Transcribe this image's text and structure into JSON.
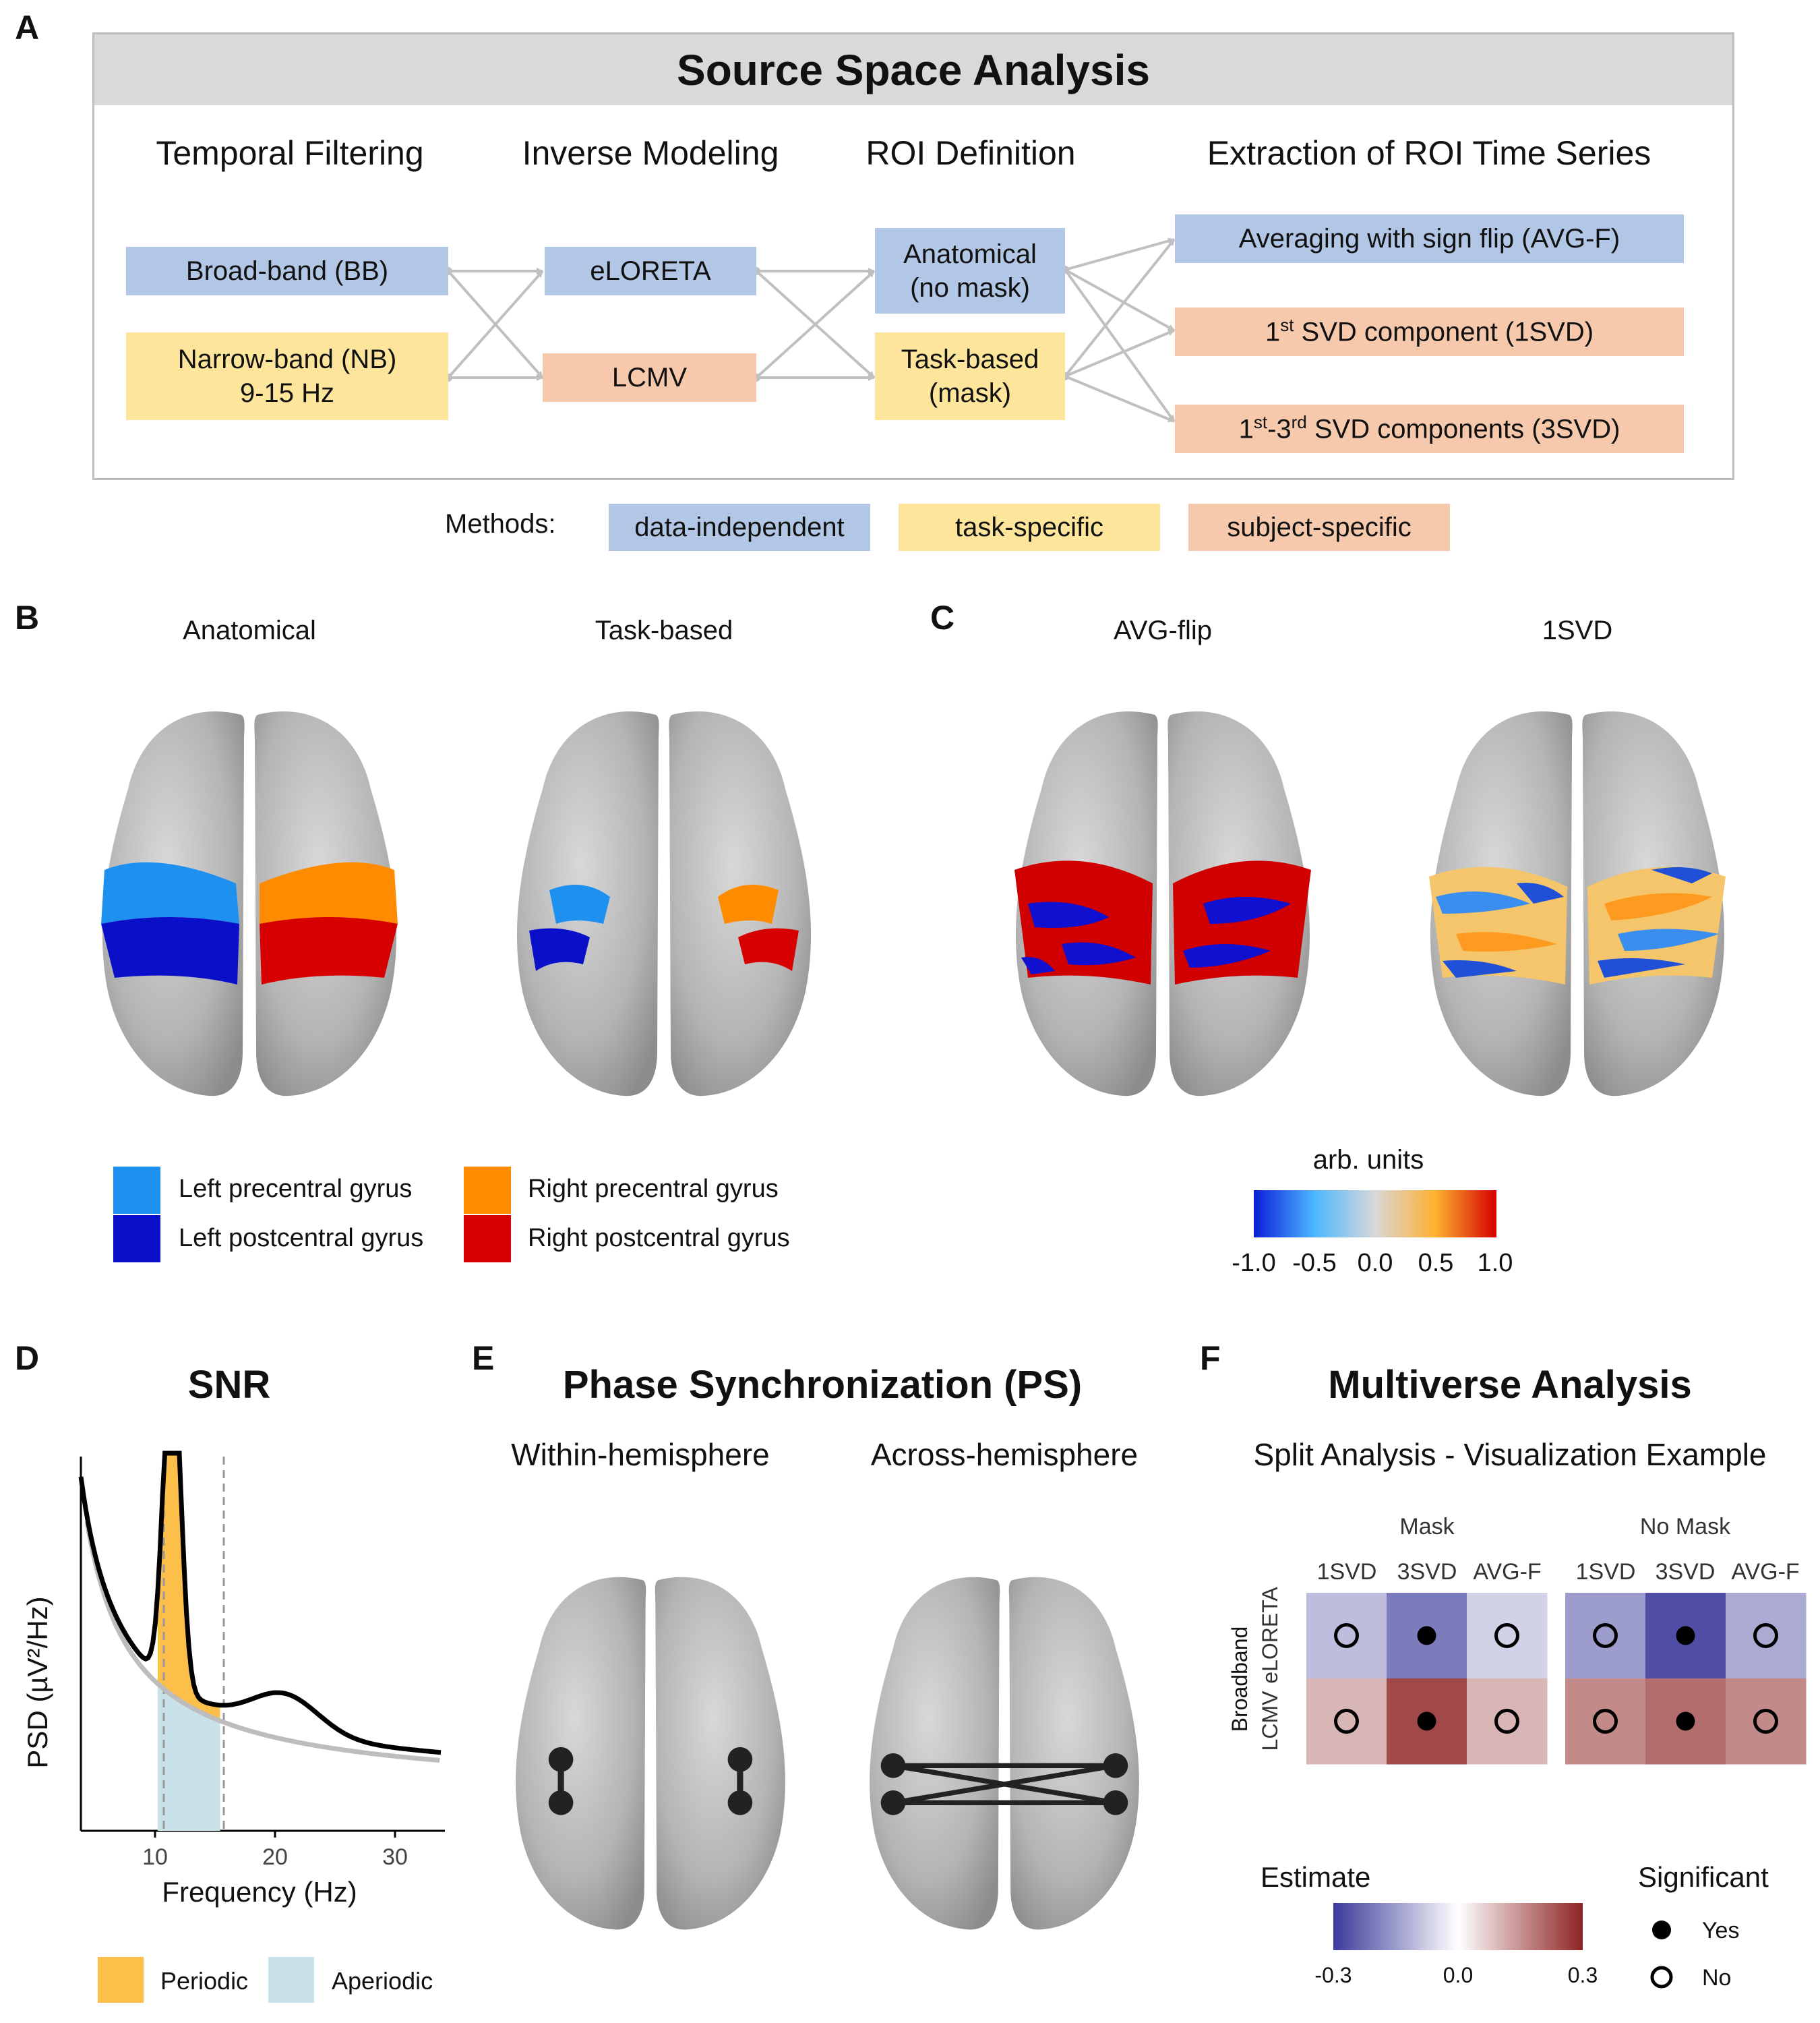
{
  "panels": {
    "a": "A",
    "b": "B",
    "c": "C",
    "d": "D",
    "e": "E",
    "f": "F"
  },
  "panel_a": {
    "title": "Source Space Analysis",
    "columns": [
      "Temporal Filtering",
      "Inverse Modeling",
      "ROI Definition",
      "Extraction of ROI Time Series"
    ],
    "filtering": {
      "bb": "Broad-band (BB)",
      "nb_line1": "Narrow-band (NB)",
      "nb_line2": "9-15 Hz"
    },
    "inverse": {
      "eloreta": "eLORETA",
      "lcmv": "LCMV"
    },
    "roi": {
      "anat_line1": "Anatomical",
      "anat_line2": "(no mask)",
      "task_line1": "Task-based",
      "task_line2": "(mask)"
    },
    "extraction": {
      "avg": "Averaging with sign flip (AVG-F)",
      "svd1_sup": "st",
      "svd1_rest": " SVD component (1SVD)",
      "svd3_pre": "1",
      "svd3_sup1": "st",
      "svd3_mid": "-3",
      "svd3_sup2": "rd",
      "svd3_rest": " SVD components (3SVD)",
      "one": "1"
    },
    "methods_label": "Methods:",
    "methods": [
      "data-independent",
      "task-specific",
      "subject-specific"
    ],
    "colors": {
      "blue": "#b2c6e6",
      "yellow": "#fde69c",
      "salmon": "#f6c9ad"
    }
  },
  "panel_b": {
    "titles": [
      "Anatomical",
      "Task-based"
    ],
    "legend": [
      {
        "label": "Left precentral gyrus",
        "color": "#1e90f0"
      },
      {
        "label": "Left postcentral gyrus",
        "color": "#0a10c8"
      },
      {
        "label": "Right precentral gyrus",
        "color": "#ff8c00"
      },
      {
        "label": "Right postcentral gyrus",
        "color": "#d60000"
      }
    ]
  },
  "panel_c": {
    "titles": [
      "AVG-flip",
      "1SVD"
    ],
    "colorbar_title": "arb. units",
    "ticks": [
      "-1.0",
      "-0.5",
      "0.0",
      "0.5",
      "1.0"
    ]
  },
  "panel_d": {
    "title": "SNR",
    "ylabel": "PSD (µV²/Hz)",
    "xlabel": "Frequency (Hz)",
    "xticks": [
      "10",
      "20",
      "30"
    ],
    "legend": [
      {
        "label": "Periodic",
        "color": "#fbbf4a"
      },
      {
        "label": "Aperiodic",
        "color": "#c9e2ea"
      }
    ]
  },
  "panel_e": {
    "title": "Phase Synchronization (PS)",
    "subtitles": [
      "Within-hemisphere",
      "Across-hemisphere"
    ]
  },
  "panel_f": {
    "title": "Multiverse Analysis",
    "subtitle": "Split Analysis - Visualization Example",
    "groups": [
      "Mask",
      "No Mask"
    ],
    "cols": [
      "1SVD",
      "3SVD",
      "AVG-F"
    ],
    "rows": [
      "eLORETA",
      "LCMV"
    ],
    "side_label": "Broadband",
    "estimate_title": "Estimate",
    "estimate_ticks": [
      "-0.3",
      "0.0",
      "0.3"
    ],
    "significant_title": "Significant",
    "sig_labels": [
      "Yes",
      "No"
    ],
    "heatmap": {
      "mask": {
        "values": [
          [
            -0.1,
            -0.2,
            -0.07
          ],
          [
            0.1,
            0.25,
            0.1
          ]
        ],
        "significant": [
          [
            false,
            true,
            false
          ],
          [
            false,
            true,
            false
          ]
        ]
      },
      "nomask": {
        "values": [
          [
            -0.15,
            -0.27,
            -0.13
          ],
          [
            0.16,
            0.2,
            0.16
          ]
        ],
        "significant": [
          [
            false,
            true,
            false
          ],
          [
            false,
            true,
            false
          ]
        ]
      }
    }
  }
}
